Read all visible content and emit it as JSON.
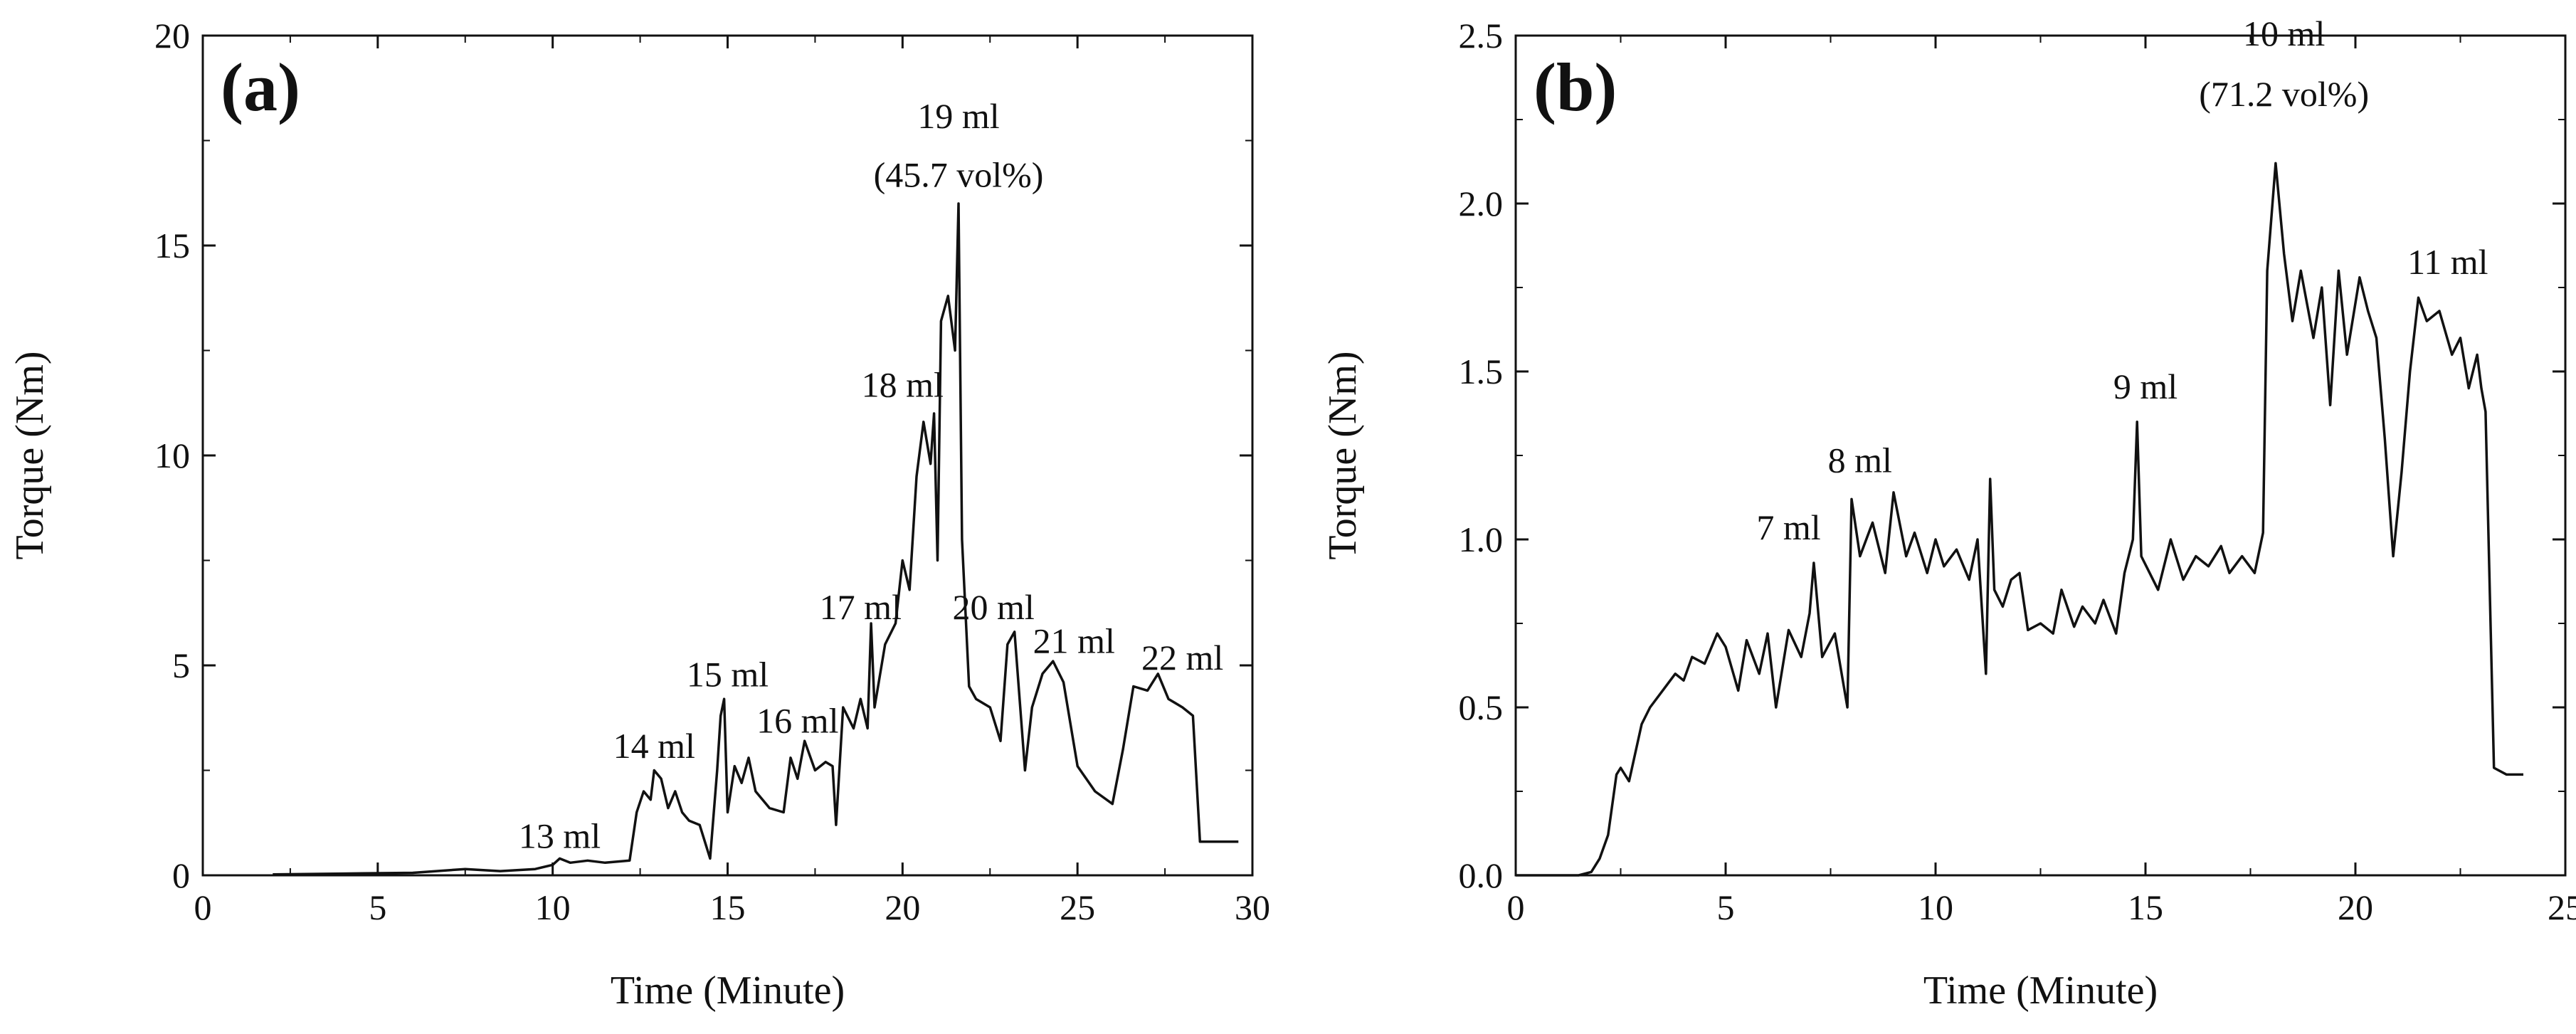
{
  "figure": {
    "line_color": "#111111",
    "axis_color": "#111111",
    "background": "#ffffff"
  },
  "chart_data": [
    {
      "type": "line",
      "panel_label": "(a)",
      "xlabel": "Time (Minute)",
      "ylabel": "Torque (Nm)",
      "xlim": [
        0,
        30
      ],
      "ylim": [
        0,
        20
      ],
      "xticks": [
        0,
        5,
        10,
        15,
        20,
        25,
        30
      ],
      "yticks": [
        0,
        5,
        10,
        15,
        20
      ],
      "grid": false,
      "series": [
        {
          "name": "Torque",
          "x": [
            2.0,
            4.0,
            6.0,
            7.5,
            8.5,
            9.5,
            10.0,
            10.2,
            10.5,
            11.0,
            11.5,
            12.2,
            12.4,
            12.6,
            12.8,
            12.9,
            13.1,
            13.3,
            13.5,
            13.7,
            13.9,
            14.2,
            14.5,
            14.7,
            14.8,
            14.9,
            15.0,
            15.2,
            15.4,
            15.6,
            15.8,
            16.2,
            16.6,
            16.8,
            17.0,
            17.2,
            17.5,
            17.8,
            18.0,
            18.1,
            18.3,
            18.6,
            18.8,
            19.0,
            19.1,
            19.2,
            19.5,
            19.8,
            20.0,
            20.2,
            20.4,
            20.6,
            20.8,
            20.9,
            21.0,
            21.1,
            21.3,
            21.5,
            21.6,
            21.7,
            21.9,
            22.1,
            22.5,
            22.8,
            23.0,
            23.2,
            23.5,
            23.7,
            24.0,
            24.3,
            24.6,
            25.0,
            25.5,
            26.0,
            26.3,
            26.6,
            27.0,
            27.3,
            27.6,
            28.0,
            28.3,
            28.5,
            29.0,
            29.6
          ],
          "y": [
            0.02,
            0.04,
            0.06,
            0.15,
            0.1,
            0.15,
            0.25,
            0.4,
            0.3,
            0.35,
            0.3,
            0.35,
            1.5,
            2.0,
            1.8,
            2.5,
            2.3,
            1.6,
            2.0,
            1.5,
            1.3,
            1.2,
            0.4,
            2.5,
            3.8,
            4.2,
            1.5,
            2.6,
            2.2,
            2.8,
            2.0,
            1.6,
            1.5,
            2.8,
            2.3,
            3.2,
            2.5,
            2.7,
            2.6,
            1.2,
            4.0,
            3.5,
            4.2,
            3.5,
            6.0,
            4.0,
            5.5,
            6.0,
            7.5,
            6.8,
            9.5,
            10.8,
            9.8,
            11.0,
            7.5,
            13.2,
            13.8,
            12.5,
            16.0,
            8.0,
            4.5,
            4.2,
            4.0,
            3.2,
            5.5,
            5.8,
            2.5,
            4.0,
            4.8,
            5.1,
            4.6,
            2.6,
            2.0,
            1.7,
            3.0,
            4.5,
            4.4,
            4.8,
            4.2,
            4.0,
            3.8,
            0.8,
            0.8,
            0.8
          ]
        }
      ],
      "annotations": [
        {
          "text": "13 ml",
          "x": 10.2,
          "y": 0.65
        },
        {
          "text": "14 ml",
          "x": 12.9,
          "y": 2.8
        },
        {
          "text": "15 ml",
          "x": 15.0,
          "y": 4.5
        },
        {
          "text": "16 ml",
          "x": 17.0,
          "y": 3.4
        },
        {
          "text": "17 ml",
          "x": 18.8,
          "y": 6.1
        },
        {
          "text": "18 ml",
          "x": 20.0,
          "y": 11.4
        },
        {
          "text": "19 ml",
          "x": 21.6,
          "y": 17.8
        },
        {
          "text": "(45.7 vol%)",
          "x": 21.6,
          "y": 16.4
        },
        {
          "text": "20 ml",
          "x": 22.6,
          "y": 6.1
        },
        {
          "text": "21 ml",
          "x": 24.9,
          "y": 5.3
        },
        {
          "text": "22 ml",
          "x": 28.0,
          "y": 4.9
        }
      ]
    },
    {
      "type": "line",
      "panel_label": "(b)",
      "xlabel": "Time (Minute)",
      "ylabel": "Torque (Nm)",
      "xlim": [
        0,
        25
      ],
      "ylim": [
        0,
        2.5
      ],
      "xticks": [
        0,
        5,
        10,
        15,
        20,
        25
      ],
      "yticks": [
        "0.0",
        "0.5",
        "1.0",
        "1.5",
        "2.0",
        "2.5"
      ],
      "grid": false,
      "series": [
        {
          "name": "Torque",
          "x": [
            0.0,
            1.5,
            1.8,
            2.0,
            2.2,
            2.4,
            2.5,
            2.7,
            3.0,
            3.2,
            3.5,
            3.8,
            4.0,
            4.2,
            4.5,
            4.8,
            5.0,
            5.3,
            5.5,
            5.8,
            6.0,
            6.2,
            6.5,
            6.8,
            7.0,
            7.1,
            7.3,
            7.6,
            7.9,
            8.0,
            8.2,
            8.5,
            8.8,
            9.0,
            9.3,
            9.5,
            9.8,
            10.0,
            10.2,
            10.5,
            10.8,
            11.0,
            11.2,
            11.3,
            11.4,
            11.6,
            11.8,
            12.0,
            12.2,
            12.5,
            12.8,
            13.0,
            13.3,
            13.5,
            13.8,
            14.0,
            14.3,
            14.5,
            14.7,
            14.8,
            14.9,
            15.1,
            15.3,
            15.6,
            15.9,
            16.2,
            16.5,
            16.8,
            17.0,
            17.3,
            17.6,
            17.8,
            17.9,
            18.1,
            18.3,
            18.5,
            18.7,
            19.0,
            19.2,
            19.4,
            19.6,
            19.8,
            20.1,
            20.3,
            20.5,
            20.7,
            20.9,
            21.1,
            21.3,
            21.5,
            21.7,
            22.0,
            22.3,
            22.5,
            22.7,
            22.9,
            23.0,
            23.1,
            23.3,
            23.6,
            24.0
          ],
          "y": [
            0.0,
            0.0,
            0.01,
            0.05,
            0.12,
            0.3,
            0.32,
            0.28,
            0.45,
            0.5,
            0.55,
            0.6,
            0.58,
            0.65,
            0.63,
            0.72,
            0.68,
            0.55,
            0.7,
            0.6,
            0.72,
            0.5,
            0.73,
            0.65,
            0.78,
            0.93,
            0.65,
            0.72,
            0.5,
            1.12,
            0.95,
            1.05,
            0.9,
            1.14,
            0.95,
            1.02,
            0.9,
            1.0,
            0.92,
            0.97,
            0.88,
            1.0,
            0.6,
            1.18,
            0.85,
            0.8,
            0.88,
            0.9,
            0.73,
            0.75,
            0.72,
            0.85,
            0.74,
            0.8,
            0.75,
            0.82,
            0.72,
            0.9,
            1.0,
            1.35,
            0.95,
            0.9,
            0.85,
            1.0,
            0.88,
            0.95,
            0.92,
            0.98,
            0.9,
            0.95,
            0.9,
            1.02,
            1.8,
            2.12,
            1.85,
            1.65,
            1.8,
            1.6,
            1.75,
            1.4,
            1.8,
            1.55,
            1.78,
            1.68,
            1.6,
            1.3,
            0.95,
            1.2,
            1.5,
            1.72,
            1.65,
            1.68,
            1.55,
            1.6,
            1.45,
            1.55,
            1.45,
            1.38,
            0.32,
            0.3,
            0.3
          ]
        }
      ],
      "annotations": [
        {
          "text": "7 ml",
          "x": 6.5,
          "y": 1.0
        },
        {
          "text": "8 ml",
          "x": 8.2,
          "y": 1.2
        },
        {
          "text": "9 ml",
          "x": 15.0,
          "y": 1.42
        },
        {
          "text": "10 ml",
          "x": 18.3,
          "y": 2.47
        },
        {
          "text": "(71.2 vol%)",
          "x": 18.3,
          "y": 2.29
        },
        {
          "text": "11 ml",
          "x": 22.2,
          "y": 1.79
        }
      ]
    }
  ]
}
